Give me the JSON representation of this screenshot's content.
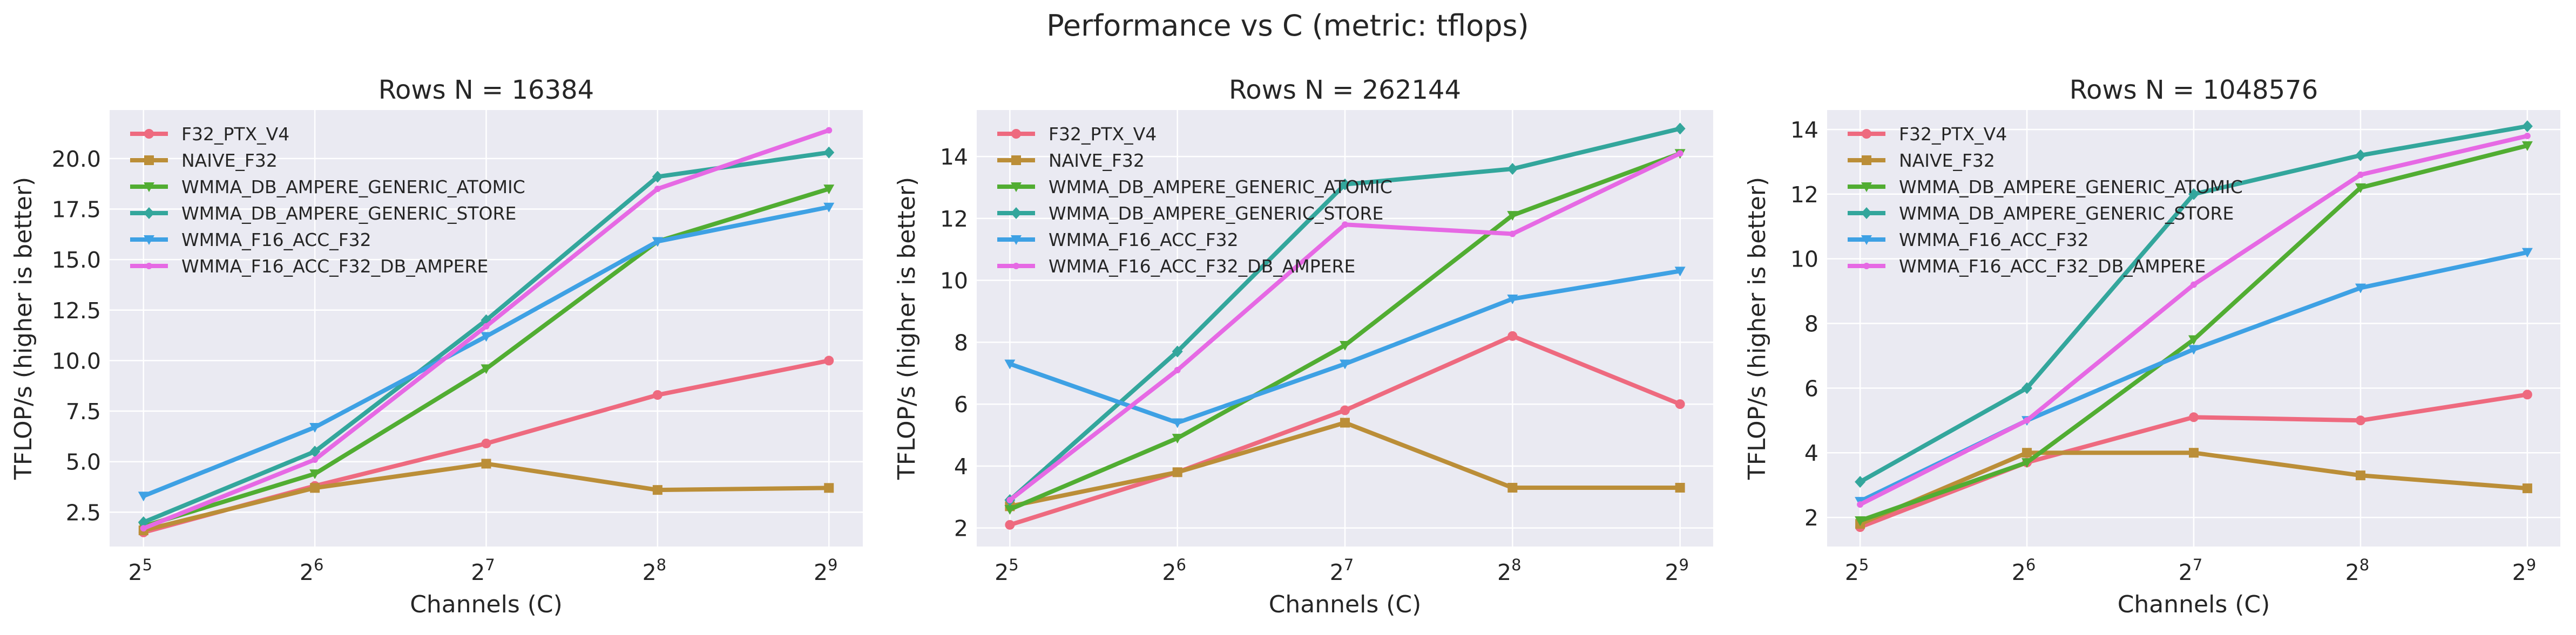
{
  "figure": {
    "title": "Performance vs C (metric: tflops)"
  },
  "colors": {
    "F32_PTX_V4": "#ee6a7f",
    "NAIVE_F32": "#bb8e38",
    "WMMA_DB_AMPERE_GENERIC_ATOMIC": "#51ad32",
    "WMMA_DB_AMPERE_GENERIC_STORE": "#33a69c",
    "WMMA_F16_ACC_F32": "#3ea1e4",
    "WMMA_F16_ACC_F32_DB_AMPERE": "#e669e4",
    "plot_bg": "#eaeaf2",
    "grid": "#ffffff"
  },
  "chart_data": [
    {
      "type": "line",
      "title": "Rows N = 16384",
      "xlabel": "Channels (C)",
      "ylabel": "TFLOP/s (higher is better)",
      "x": [
        32,
        64,
        128,
        256,
        512
      ],
      "x_tick_labels": [
        {
          "base": "2",
          "exp": "5"
        },
        {
          "base": "2",
          "exp": "6"
        },
        {
          "base": "2",
          "exp": "7"
        },
        {
          "base": "2",
          "exp": "8"
        },
        {
          "base": "2",
          "exp": "9"
        }
      ],
      "xscale": "log2",
      "ylim": [
        0.8,
        22.4
      ],
      "yticks": [
        2.5,
        5.0,
        7.5,
        10.0,
        12.5,
        15.0,
        17.5,
        20.0
      ],
      "ytick_labels": [
        "2.5",
        "5.0",
        "7.5",
        "10.0",
        "12.5",
        "15.0",
        "17.5",
        "20.0"
      ],
      "grid": true,
      "legend_position": "top-left",
      "series": [
        {
          "name": "F32_PTX_V4",
          "values": [
            1.5,
            3.8,
            5.9,
            8.3,
            10.0
          ]
        },
        {
          "name": "NAIVE_F32",
          "values": [
            1.6,
            3.7,
            4.9,
            3.6,
            3.7
          ]
        },
        {
          "name": "WMMA_DB_AMPERE_GENERIC_ATOMIC",
          "values": [
            1.8,
            4.4,
            9.6,
            15.9,
            18.5
          ]
        },
        {
          "name": "WMMA_DB_AMPERE_GENERIC_STORE",
          "values": [
            2.0,
            5.5,
            12.0,
            19.1,
            20.3
          ]
        },
        {
          "name": "WMMA_F16_ACC_F32",
          "values": [
            3.3,
            6.7,
            11.2,
            15.9,
            17.6
          ]
        },
        {
          "name": "WMMA_F16_ACC_F32_DB_AMPERE",
          "values": [
            1.7,
            5.1,
            11.7,
            18.5,
            21.4
          ]
        }
      ]
    },
    {
      "type": "line",
      "title": "Rows N = 262144",
      "xlabel": "Channels (C)",
      "ylabel": "TFLOP/s (higher is better)",
      "x": [
        32,
        64,
        128,
        256,
        512
      ],
      "x_tick_labels": [
        {
          "base": "2",
          "exp": "5"
        },
        {
          "base": "2",
          "exp": "6"
        },
        {
          "base": "2",
          "exp": "7"
        },
        {
          "base": "2",
          "exp": "8"
        },
        {
          "base": "2",
          "exp": "9"
        }
      ],
      "xscale": "log2",
      "ylim": [
        1.4,
        15.5
      ],
      "yticks": [
        2,
        4,
        6,
        8,
        10,
        12,
        14
      ],
      "ytick_labels": [
        "2",
        "4",
        "6",
        "8",
        "10",
        "12",
        "14"
      ],
      "grid": true,
      "legend_position": "top-left",
      "series": [
        {
          "name": "F32_PTX_V4",
          "values": [
            2.1,
            3.8,
            5.8,
            8.2,
            6.0
          ]
        },
        {
          "name": "NAIVE_F32",
          "values": [
            2.7,
            3.8,
            5.4,
            3.3,
            3.3
          ]
        },
        {
          "name": "WMMA_DB_AMPERE_GENERIC_ATOMIC",
          "values": [
            2.6,
            4.9,
            7.9,
            12.1,
            14.1
          ]
        },
        {
          "name": "WMMA_DB_AMPERE_GENERIC_STORE",
          "values": [
            2.9,
            7.7,
            13.1,
            13.6,
            14.9
          ]
        },
        {
          "name": "WMMA_F16_ACC_F32",
          "values": [
            7.3,
            5.4,
            7.3,
            9.4,
            10.3
          ]
        },
        {
          "name": "WMMA_F16_ACC_F32_DB_AMPERE",
          "values": [
            2.9,
            7.1,
            11.8,
            11.5,
            14.1
          ]
        }
      ]
    },
    {
      "type": "line",
      "title": "Rows N = 1048576",
      "xlabel": "Channels (C)",
      "ylabel": "TFLOP/s (higher is better)",
      "x": [
        32,
        64,
        128,
        256,
        512
      ],
      "x_tick_labels": [
        {
          "base": "2",
          "exp": "5"
        },
        {
          "base": "2",
          "exp": "6"
        },
        {
          "base": "2",
          "exp": "7"
        },
        {
          "base": "2",
          "exp": "8"
        },
        {
          "base": "2",
          "exp": "9"
        }
      ],
      "xscale": "log2",
      "ylim": [
        1.1,
        14.6
      ],
      "yticks": [
        2,
        4,
        6,
        8,
        10,
        12,
        14
      ],
      "ytick_labels": [
        "2",
        "4",
        "6",
        "8",
        "10",
        "12",
        "14"
      ],
      "grid": true,
      "legend_position": "top-left",
      "series": [
        {
          "name": "F32_PTX_V4",
          "values": [
            1.7,
            3.7,
            5.1,
            5.0,
            5.8
          ]
        },
        {
          "name": "NAIVE_F32",
          "values": [
            1.8,
            4.0,
            4.0,
            3.3,
            2.9
          ]
        },
        {
          "name": "WMMA_DB_AMPERE_GENERIC_ATOMIC",
          "values": [
            1.9,
            3.7,
            7.5,
            12.2,
            13.5
          ]
        },
        {
          "name": "WMMA_DB_AMPERE_GENERIC_STORE",
          "values": [
            3.1,
            6.0,
            12.0,
            13.2,
            14.1
          ]
        },
        {
          "name": "WMMA_F16_ACC_F32",
          "values": [
            2.5,
            5.0,
            7.2,
            9.1,
            10.2
          ]
        },
        {
          "name": "WMMA_F16_ACC_F32_DB_AMPERE",
          "values": [
            2.4,
            5.0,
            9.2,
            12.6,
            13.8
          ]
        }
      ]
    }
  ]
}
